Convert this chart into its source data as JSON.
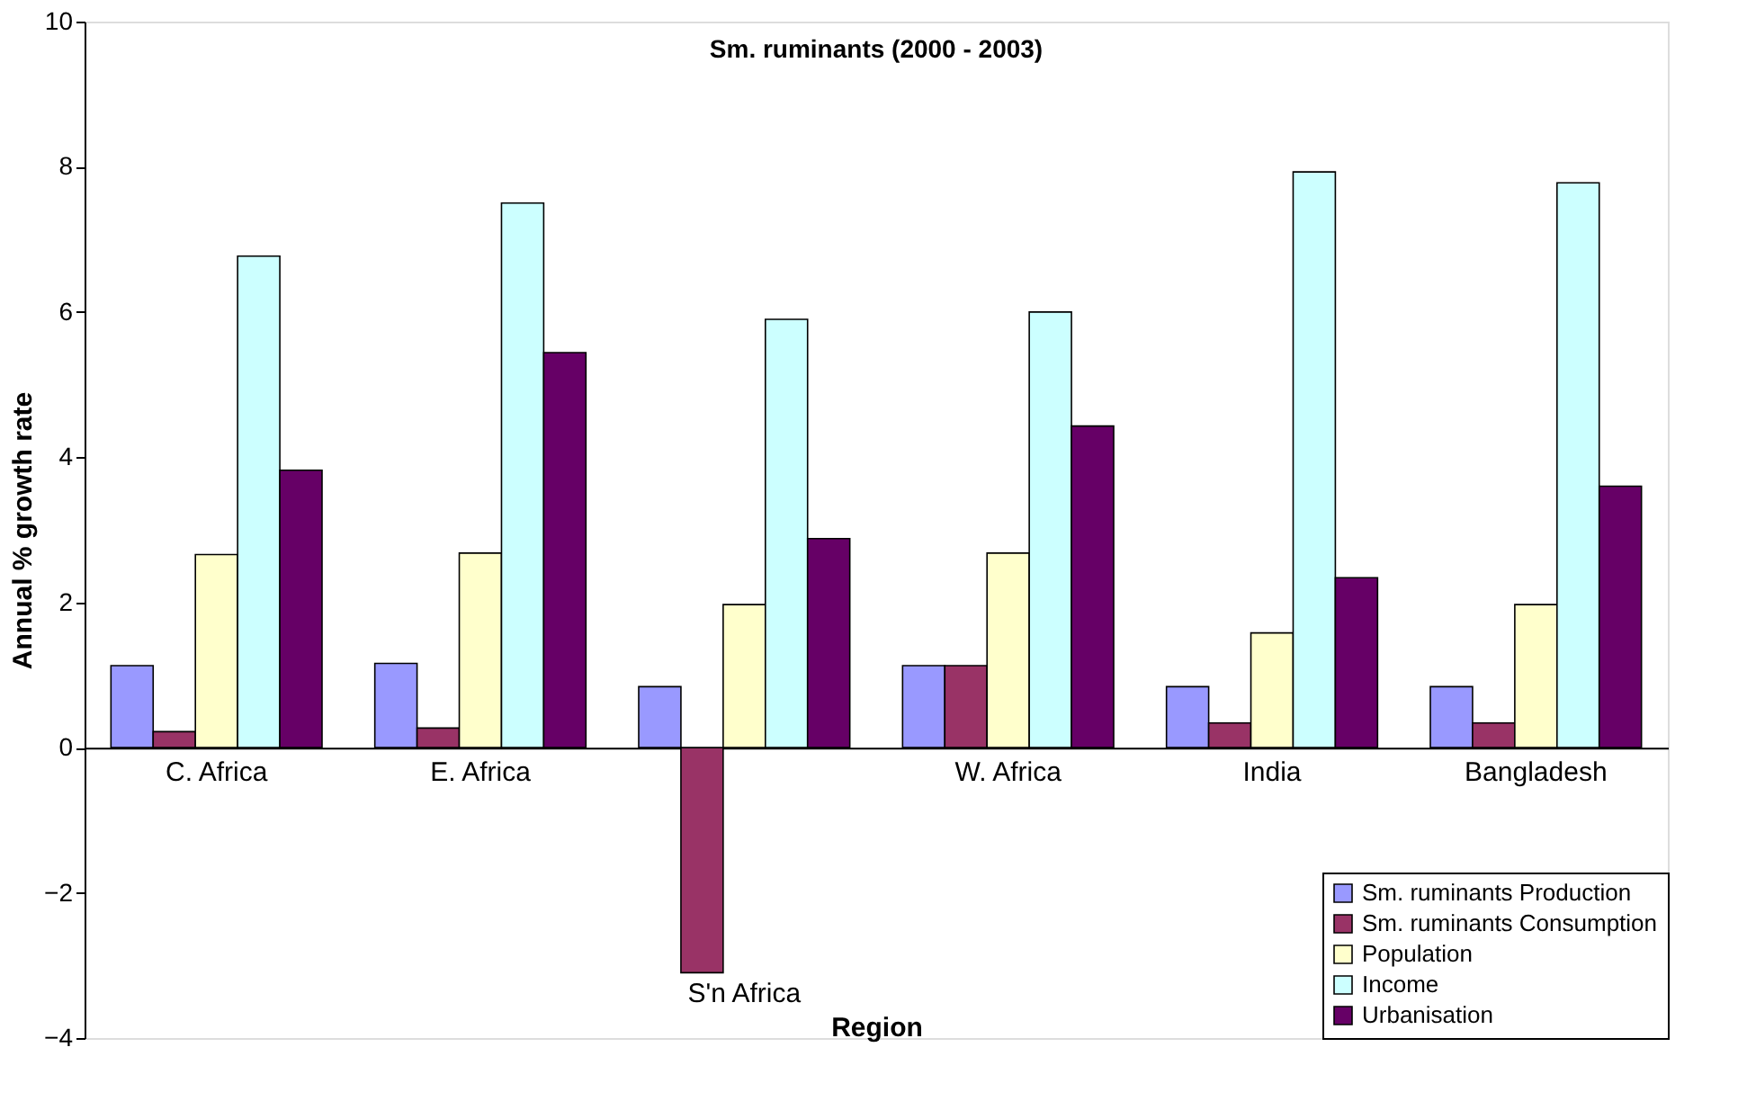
{
  "chart_data": {
    "type": "bar",
    "title": "Sm. ruminants (2000 - 2003)",
    "xlabel": "Region",
    "ylabel": "Annual % growth rate",
    "categories": [
      "C. Africa",
      "E. Africa",
      "S'n Africa",
      "W. Africa",
      "India",
      "Bangladesh"
    ],
    "series": [
      {
        "name": "Sm. ruminants Production",
        "color": "#9999ff",
        "values": [
          1.13,
          1.16,
          0.84,
          1.13,
          0.84,
          0.84
        ]
      },
      {
        "name": "Sm. ruminants Consumption",
        "color": "#993366",
        "values": [
          0.22,
          0.27,
          -3.1,
          1.13,
          0.34,
          0.34
        ]
      },
      {
        "name": "Population",
        "color": "#ffffcc",
        "values": [
          2.66,
          2.68,
          1.97,
          2.68,
          1.58,
          1.97
        ]
      },
      {
        "name": "Income",
        "color": "#ccffff",
        "values": [
          6.77,
          7.5,
          5.9,
          6.0,
          7.93,
          7.78
        ]
      },
      {
        "name": "Urbanisation",
        "color": "#660066",
        "values": [
          3.82,
          5.44,
          2.88,
          4.43,
          2.34,
          3.6
        ]
      }
    ],
    "ylim": [
      -4,
      10
    ],
    "yticks": [
      -4,
      -2,
      0,
      2,
      4,
      6,
      8,
      10
    ],
    "grid": false,
    "legend": "bottom right"
  }
}
